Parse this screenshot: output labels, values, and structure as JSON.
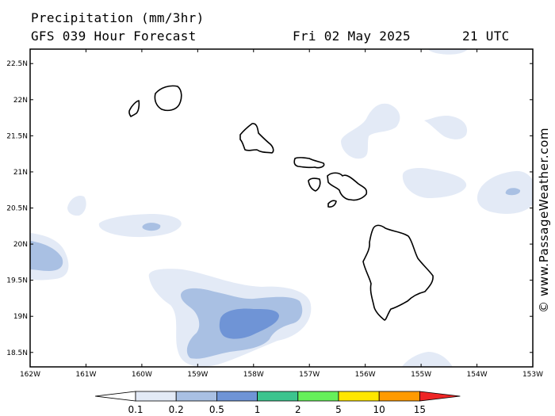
{
  "title": {
    "line1": "Precipitation (mm/3hr)",
    "line2": "GFS 039 Hour Forecast",
    "date": "Fri 02 May 2025",
    "time": "21 UTC"
  },
  "credit": "© www.PassageWeather.com",
  "chart_data": {
    "type": "heatmap",
    "variable": "Precipitation",
    "units": "mm/3hr",
    "xlim": [
      -162,
      -153
    ],
    "ylim": [
      18.3,
      22.7
    ],
    "x_ticks": [
      "162W",
      "161W",
      "160W",
      "159W",
      "158W",
      "157W",
      "156W",
      "155W",
      "154W",
      "153W"
    ],
    "y_ticks": [
      "22.5N",
      "22N",
      "21.5N",
      "21N",
      "20.5N",
      "20N",
      "19.5N",
      "19N",
      "18.5N"
    ],
    "color_scale": {
      "levels": [
        "0.1",
        "0.2",
        "0.5",
        "1",
        "2",
        "5",
        "10",
        "15"
      ],
      "colors": [
        "#ffffff",
        "#e3eaf6",
        "#a9c0e3",
        "#6f94d6",
        "#3cc48e",
        "#66f05a",
        "#ffe600",
        "#ff9a00",
        "#ee2525"
      ]
    },
    "precip_areas": [
      {
        "region": "south of Big Island near 158.5W 19N",
        "max_class": "0.5-1"
      },
      {
        "region": "west edge near 162W 19.9N",
        "max_class": "0.2-0.5"
      },
      {
        "region": "near 160W 20.2N",
        "max_class": "0.2-0.5"
      },
      {
        "region": "near 153.7W 20.8N",
        "max_class": "0.2-0.5"
      },
      {
        "region": "north of Molokai near 156.7W 21.6N",
        "max_class": "0.1-0.2"
      },
      {
        "region": "near 155W 21.5N",
        "max_class": "0.1-0.2"
      },
      {
        "region": "near 154.8W 20.9N",
        "max_class": "0.1-0.2"
      },
      {
        "region": "near 161.2W 20.6N",
        "max_class": "0.1-0.2"
      },
      {
        "region": "near 155.1W 18.4N",
        "max_class": "0.1-0.2"
      }
    ],
    "grid": false
  }
}
